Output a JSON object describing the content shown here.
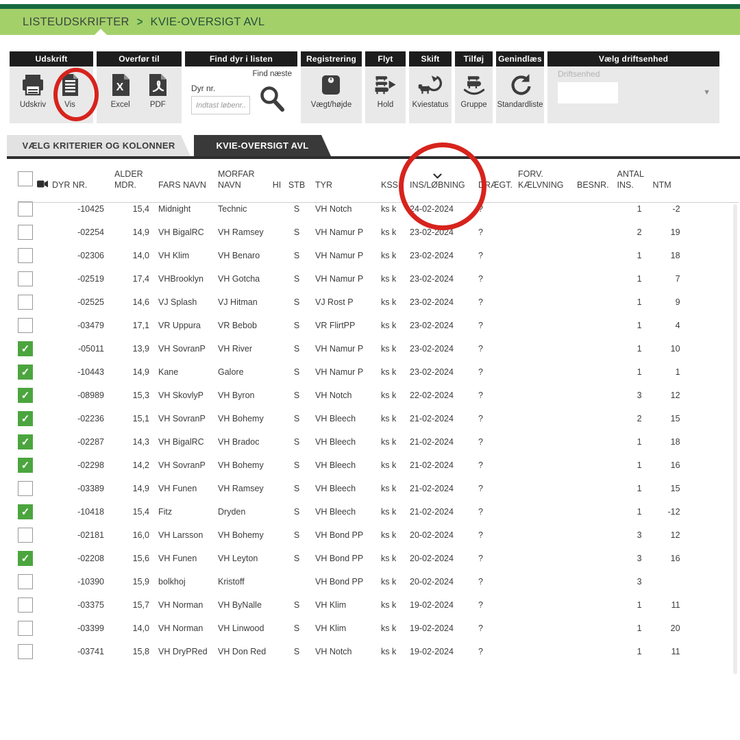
{
  "breadcrumb": {
    "items": [
      "LISTEUDSKRIFTER",
      "KVIE-OVERSIGT AVL"
    ],
    "separator": ">"
  },
  "toolbar": {
    "groups": [
      {
        "title": "Udskrift",
        "buttons": [
          {
            "label": "Udskriv"
          },
          {
            "label": "Vis"
          }
        ]
      },
      {
        "title": "Overfør til",
        "buttons": [
          {
            "label": "Excel"
          },
          {
            "label": "PDF"
          }
        ]
      },
      {
        "title": "Find dyr i listen",
        "field_label": "Dyr nr.",
        "input_placeholder": "Indtast løbenr...",
        "input_value": "",
        "button_label": "Find næste"
      },
      {
        "title": "Registrering",
        "buttons": [
          {
            "label": "Vægt/højde"
          }
        ]
      },
      {
        "title": "Flyt",
        "buttons": [
          {
            "label": "Hold"
          }
        ]
      },
      {
        "title": "Skift",
        "buttons": [
          {
            "label": "Kviestatus"
          }
        ]
      },
      {
        "title": "Tilføj",
        "buttons": [
          {
            "label": "Gruppe"
          }
        ]
      },
      {
        "title": "Genindlæs",
        "buttons": [
          {
            "label": "Standardliste"
          }
        ]
      },
      {
        "title": "Vælg driftsenhed",
        "field_label": "Driftsenhed",
        "value": ""
      }
    ]
  },
  "tabs": [
    {
      "label": "VÆLG KRITERIER OG KOLONNER",
      "active": false
    },
    {
      "label": "KVIE-OVERSIGT AVL",
      "active": true
    }
  ],
  "icons": {
    "check": "✓",
    "dropdown": "▼"
  },
  "colors": {
    "top_accent": "#17693f",
    "top_bar": "#a4d06a",
    "group_header": "#1d1d1d",
    "group_body": "#e9e9e9",
    "icon": "#3d3d3d",
    "tab_active": "#393939",
    "checkbox_checked": "#4ba53e",
    "annotation": "#d7231d"
  },
  "table": {
    "columns": [
      {
        "key": "dyrnr",
        "label": "DYR NR."
      },
      {
        "key": "alder",
        "label": "ALDER\nMDR."
      },
      {
        "key": "fars",
        "label": "FARS NAVN"
      },
      {
        "key": "morfar",
        "label": "MORFAR\nNAVN"
      },
      {
        "key": "hi",
        "label": "HI"
      },
      {
        "key": "stb",
        "label": "STB"
      },
      {
        "key": "tyr",
        "label": "TYR"
      },
      {
        "key": "kss",
        "label": "KSS"
      },
      {
        "key": "ins",
        "label": "INS/LØBNING",
        "sorted": true
      },
      {
        "key": "draegt",
        "label": "DRÆGT."
      },
      {
        "key": "forv",
        "label": "FORV.\nKÆLVNING"
      },
      {
        "key": "besnr",
        "label": "BESNR."
      },
      {
        "key": "antal",
        "label": "ANTAL\nINS."
      },
      {
        "key": "ntm",
        "label": "NTM"
      }
    ],
    "rows": [
      {
        "checked": false,
        "dyrnr": "-10425",
        "alder": "15,4",
        "fars": "Midnight",
        "morfar": "Technic",
        "hi": "",
        "stb": "S",
        "tyr": "VH Notch",
        "kss": "ks k",
        "ins": "24-02-2024",
        "draegt": "?",
        "forv": "",
        "besnr": "",
        "antal": "1",
        "ntm": "-2"
      },
      {
        "checked": false,
        "dyrnr": "-02254",
        "alder": "14,9",
        "fars": "VH BigalRC",
        "morfar": "VH Ramsey",
        "hi": "",
        "stb": "S",
        "tyr": "VH Namur P",
        "kss": "ks k",
        "ins": "23-02-2024",
        "draegt": "?",
        "forv": "",
        "besnr": "",
        "antal": "2",
        "ntm": "19"
      },
      {
        "checked": false,
        "dyrnr": "-02306",
        "alder": "14,0",
        "fars": "VH Klim",
        "morfar": "VH Benaro",
        "hi": "",
        "stb": "S",
        "tyr": "VH Namur P",
        "kss": "ks k",
        "ins": "23-02-2024",
        "draegt": "?",
        "forv": "",
        "besnr": "",
        "antal": "1",
        "ntm": "18"
      },
      {
        "checked": false,
        "dyrnr": "-02519",
        "alder": "17,4",
        "fars": "VHBrooklyn",
        "morfar": "VH Gotcha",
        "hi": "",
        "stb": "S",
        "tyr": "VH Namur P",
        "kss": "ks k",
        "ins": "23-02-2024",
        "draegt": "?",
        "forv": "",
        "besnr": "",
        "antal": "1",
        "ntm": "7"
      },
      {
        "checked": false,
        "dyrnr": "-02525",
        "alder": "14,6",
        "fars": "VJ Splash",
        "morfar": "VJ Hitman",
        "hi": "",
        "stb": "S",
        "tyr": "VJ Rost P",
        "kss": "ks k",
        "ins": "23-02-2024",
        "draegt": "?",
        "forv": "",
        "besnr": "",
        "antal": "1",
        "ntm": "9"
      },
      {
        "checked": false,
        "dyrnr": "-03479",
        "alder": "17,1",
        "fars": "VR Uppura",
        "morfar": "VR Bebob",
        "hi": "",
        "stb": "S",
        "tyr": "VR FlirtPP",
        "kss": "ks k",
        "ins": "23-02-2024",
        "draegt": "?",
        "forv": "",
        "besnr": "",
        "antal": "1",
        "ntm": "4"
      },
      {
        "checked": true,
        "dyrnr": "-05011",
        "alder": "13,9",
        "fars": "VH SovranP",
        "morfar": "VH River",
        "hi": "",
        "stb": "S",
        "tyr": "VH Namur P",
        "kss": "ks k",
        "ins": "23-02-2024",
        "draegt": "?",
        "forv": "",
        "besnr": "",
        "antal": "1",
        "ntm": "10"
      },
      {
        "checked": true,
        "dyrnr": "-10443",
        "alder": "14,9",
        "fars": "Kane",
        "morfar": "Galore",
        "hi": "",
        "stb": "S",
        "tyr": "VH Namur P",
        "kss": "ks k",
        "ins": "23-02-2024",
        "draegt": "?",
        "forv": "",
        "besnr": "",
        "antal": "1",
        "ntm": "1"
      },
      {
        "checked": true,
        "dyrnr": "-08989",
        "alder": "15,3",
        "fars": "VH SkovlyP",
        "morfar": "VH Byron",
        "hi": "",
        "stb": "S",
        "tyr": "VH Notch",
        "kss": "ks k",
        "ins": "22-02-2024",
        "draegt": "?",
        "forv": "",
        "besnr": "",
        "antal": "3",
        "ntm": "12"
      },
      {
        "checked": true,
        "dyrnr": "-02236",
        "alder": "15,1",
        "fars": "VH SovranP",
        "morfar": "VH Bohemy",
        "hi": "",
        "stb": "S",
        "tyr": "VH Bleech",
        "kss": "ks k",
        "ins": "21-02-2024",
        "draegt": "?",
        "forv": "",
        "besnr": "",
        "antal": "2",
        "ntm": "15"
      },
      {
        "checked": true,
        "dyrnr": "-02287",
        "alder": "14,3",
        "fars": "VH BigalRC",
        "morfar": "VH Bradoc",
        "hi": "",
        "stb": "S",
        "tyr": "VH Bleech",
        "kss": "ks k",
        "ins": "21-02-2024",
        "draegt": "?",
        "forv": "",
        "besnr": "",
        "antal": "1",
        "ntm": "18"
      },
      {
        "checked": true,
        "dyrnr": "-02298",
        "alder": "14,2",
        "fars": "VH SovranP",
        "morfar": "VH Bohemy",
        "hi": "",
        "stb": "S",
        "tyr": "VH Bleech",
        "kss": "ks k",
        "ins": "21-02-2024",
        "draegt": "?",
        "forv": "",
        "besnr": "",
        "antal": "1",
        "ntm": "16"
      },
      {
        "checked": false,
        "dyrnr": "-03389",
        "alder": "14,9",
        "fars": "VH Funen",
        "morfar": "VH Ramsey",
        "hi": "",
        "stb": "S",
        "tyr": "VH Bleech",
        "kss": "ks k",
        "ins": "21-02-2024",
        "draegt": "?",
        "forv": "",
        "besnr": "",
        "antal": "1",
        "ntm": "15"
      },
      {
        "checked": true,
        "dyrnr": "-10418",
        "alder": "15,4",
        "fars": "Fitz",
        "morfar": "Dryden",
        "hi": "",
        "stb": "S",
        "tyr": "VH Bleech",
        "kss": "ks k",
        "ins": "21-02-2024",
        "draegt": "?",
        "forv": "",
        "besnr": "",
        "antal": "1",
        "ntm": "-12"
      },
      {
        "checked": false,
        "dyrnr": "-02181",
        "alder": "16,0",
        "fars": "VH Larsson",
        "morfar": "VH Bohemy",
        "hi": "",
        "stb": "S",
        "tyr": "VH Bond PP",
        "kss": "ks k",
        "ins": "20-02-2024",
        "draegt": "?",
        "forv": "",
        "besnr": "",
        "antal": "3",
        "ntm": "12"
      },
      {
        "checked": true,
        "dyrnr": "-02208",
        "alder": "15,6",
        "fars": "VH Funen",
        "morfar": "VH Leyton",
        "hi": "",
        "stb": "S",
        "tyr": "VH Bond PP",
        "kss": "ks k",
        "ins": "20-02-2024",
        "draegt": "?",
        "forv": "",
        "besnr": "",
        "antal": "3",
        "ntm": "16"
      },
      {
        "checked": false,
        "dyrnr": "-10390",
        "alder": "15,9",
        "fars": "bolkhoj",
        "morfar": "Kristoff",
        "hi": "",
        "stb": "",
        "tyr": "VH Bond PP",
        "kss": "ks k",
        "ins": "20-02-2024",
        "draegt": "?",
        "forv": "",
        "besnr": "",
        "antal": "3",
        "ntm": ""
      },
      {
        "checked": false,
        "dyrnr": "-03375",
        "alder": "15,7",
        "fars": "VH Norman",
        "morfar": "VH ByNalle",
        "hi": "",
        "stb": "S",
        "tyr": "VH Klim",
        "kss": "ks k",
        "ins": "19-02-2024",
        "draegt": "?",
        "forv": "",
        "besnr": "",
        "antal": "1",
        "ntm": "11"
      },
      {
        "checked": false,
        "dyrnr": "-03399",
        "alder": "14,0",
        "fars": "VH Norman",
        "morfar": "VH Linwood",
        "hi": "",
        "stb": "S",
        "tyr": "VH Klim",
        "kss": "ks k",
        "ins": "19-02-2024",
        "draegt": "?",
        "forv": "",
        "besnr": "",
        "antal": "1",
        "ntm": "20"
      },
      {
        "checked": false,
        "dyrnr": "-03741",
        "alder": "15,8",
        "fars": "VH DryPRed",
        "morfar": "VH Don Red",
        "hi": "",
        "stb": "S",
        "tyr": "VH Notch",
        "kss": "ks k",
        "ins": "19-02-2024",
        "draegt": "?",
        "forv": "",
        "besnr": "",
        "antal": "1",
        "ntm": "11"
      }
    ]
  }
}
